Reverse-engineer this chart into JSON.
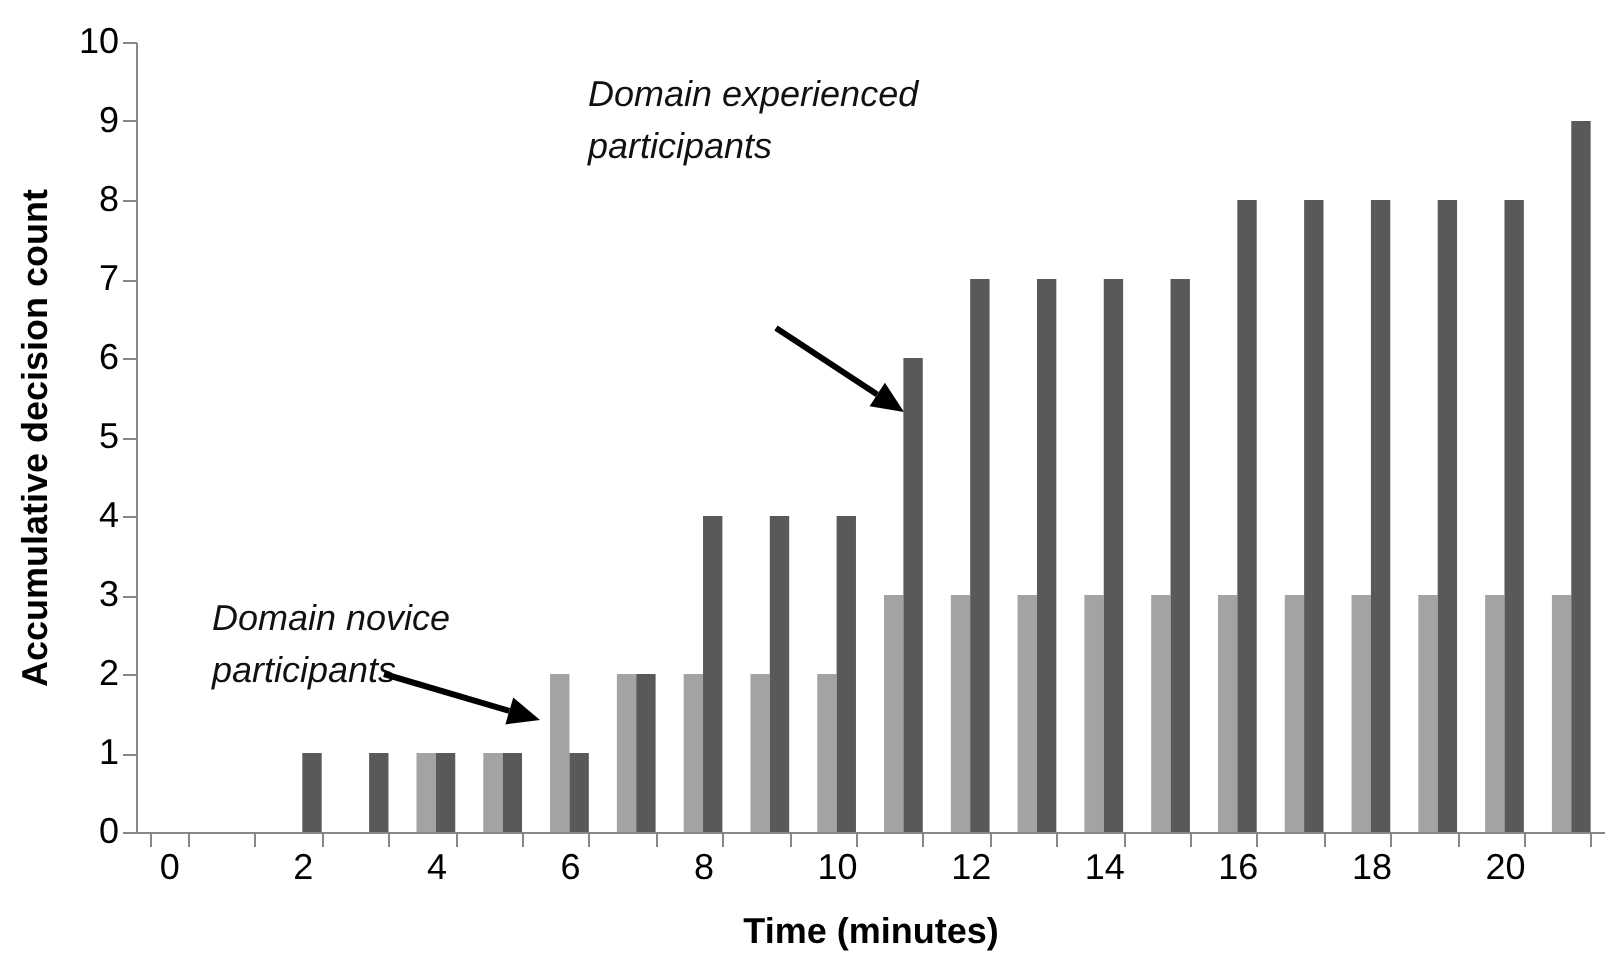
{
  "chart_data": {
    "type": "bar",
    "xlabel": "Time (minutes)",
    "ylabel": "Accumulative decision count",
    "categories": [
      "0",
      null,
      "2",
      null,
      "4",
      null,
      "6",
      null,
      "8",
      null,
      "10",
      null,
      "12",
      null,
      "14",
      null,
      "16",
      null,
      "18",
      null,
      "20",
      null
    ],
    "series": [
      {
        "color": "#a3a3a3",
        "values": [
          0,
          0,
          0,
          0,
          1,
          1,
          2,
          2,
          2,
          2,
          2,
          3,
          3,
          3,
          3,
          3,
          3,
          3,
          3,
          3,
          3,
          3
        ]
      },
      {
        "color": "#595959",
        "values": [
          0,
          0,
          1,
          1,
          1,
          1,
          1,
          2,
          4,
          4,
          4,
          6,
          7,
          7,
          7,
          7,
          8,
          8,
          8,
          8,
          8,
          9
        ]
      }
    ],
    "ylim": [
      0,
      10
    ],
    "yticks": [
      0,
      1,
      2,
      3,
      4,
      5,
      6,
      7,
      8,
      9,
      10
    ],
    "annotations": [
      "Domain novice participants",
      "Domain experienced participants"
    ]
  }
}
